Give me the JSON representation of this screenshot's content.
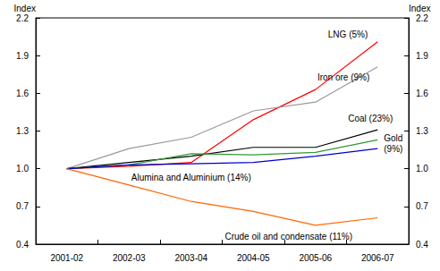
{
  "chart_data": {
    "type": "line",
    "categories": [
      "2001-02",
      "2002-03",
      "2003-04",
      "2004-05",
      "2005-06",
      "2006-07"
    ],
    "y_label": "Index",
    "y2_label": "Index",
    "ylim": [
      0.4,
      2.2
    ],
    "yticks": [
      0.4,
      0.7,
      {
        "value": 1.0,
        "label": "1.0"
      },
      1.3,
      1.6,
      1.9,
      2.2
    ],
    "y2lim": [
      0.4,
      2.2
    ],
    "y2ticks": [
      0.4,
      0.7,
      {
        "value": 1.0,
        "label": "1.0"
      },
      1.3,
      1.6,
      1.9,
      2.2
    ],
    "grid": false,
    "series": [
      {
        "name": "LNG (5%)",
        "color": "#ff0000",
        "values": [
          1.0,
          1.02,
          1.05,
          1.39,
          1.63,
          2.01
        ]
      },
      {
        "name": "Iron ore (9%)",
        "color": "#999999",
        "values": [
          1.0,
          1.16,
          1.25,
          1.46,
          1.53,
          1.81
        ]
      },
      {
        "name": "Coal (23%)",
        "color": "#000000",
        "values": [
          1.0,
          1.05,
          1.1,
          1.17,
          1.17,
          1.31
        ]
      },
      {
        "name": "Gold (9%)",
        "color": "#339933",
        "values": [
          1.0,
          1.03,
          1.12,
          1.11,
          1.13,
          1.23
        ]
      },
      {
        "name": "Alumina and Aluminium (14%)",
        "color": "#0000cc",
        "values": [
          1.0,
          1.03,
          1.04,
          1.05,
          1.1,
          1.16
        ]
      },
      {
        "name": "Crude oil and condensate (11%)",
        "color": "#ff6600",
        "values": [
          1.0,
          0.87,
          0.74,
          0.66,
          0.55,
          0.61
        ]
      }
    ]
  }
}
